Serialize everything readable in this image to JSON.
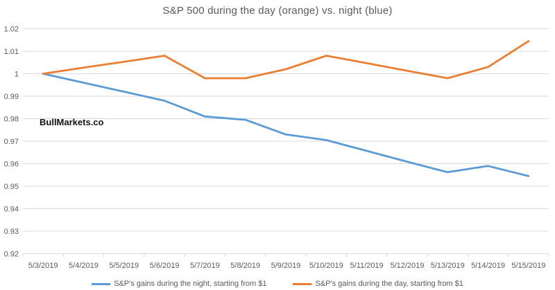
{
  "watermark": "BullMarkets.co",
  "colors": {
    "night_line": "#5B9BD5",
    "day_line": "#ED7D31",
    "gridline": "#D9D9D9",
    "axis_text": "#595959",
    "title_text": "#595959",
    "watermark_text": "#111111",
    "background": "#FFFFFF"
  },
  "chart_data": {
    "type": "line",
    "title": "S&P 500 during the day (orange) vs. night (blue)",
    "xlabel": "",
    "ylabel": "",
    "categories": [
      "5/3/2019",
      "5/4/2019",
      "5/5/2019",
      "5/6/2019",
      "5/7/2019",
      "5/8/2019",
      "5/9/2019",
      "5/10/2019",
      "5/11/2019",
      "5/12/2019",
      "5/13/2019",
      "5/14/2019",
      "5/15/2019"
    ],
    "series": [
      {
        "name": "S&P's gains during the night, starting from $1",
        "color": "#5B9BD5",
        "values": [
          1.0,
          0.996,
          0.992,
          0.988,
          0.981,
          0.9795,
          0.973,
          0.9705,
          0.9657,
          0.9609,
          0.9562,
          0.959,
          0.9545
        ]
      },
      {
        "name": "S&P's gains during the day, starting from $1",
        "color": "#ED7D31",
        "values": [
          1.0,
          1.0027,
          1.0053,
          1.008,
          0.998,
          0.998,
          1.002,
          1.008,
          1.0047,
          1.0013,
          0.998,
          1.003,
          1.0145
        ]
      }
    ],
    "y_ticks": [
      "1.02",
      "1.01",
      "1",
      "0.99",
      "0.98",
      "0.97",
      "0.96",
      "0.95",
      "0.94",
      "0.93",
      "0.92"
    ],
    "ylim": [
      0.92,
      1.02
    ],
    "grid": true,
    "legend_position": "bottom"
  }
}
